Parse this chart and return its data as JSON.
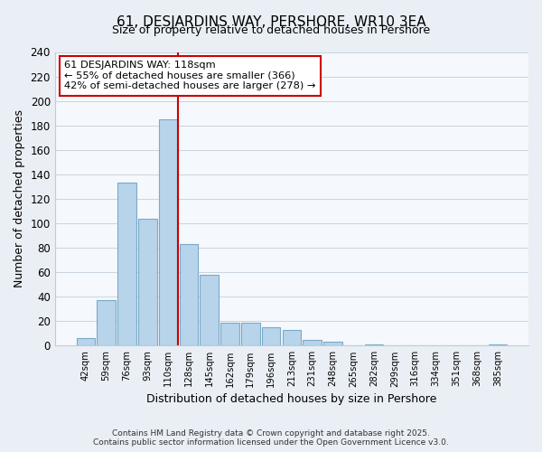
{
  "title": "61, DESJARDINS WAY, PERSHORE, WR10 3EA",
  "subtitle": "Size of property relative to detached houses in Pershore",
  "xlabel": "Distribution of detached houses by size in Pershore",
  "ylabel": "Number of detached properties",
  "bin_labels": [
    "42sqm",
    "59sqm",
    "76sqm",
    "93sqm",
    "110sqm",
    "128sqm",
    "145sqm",
    "162sqm",
    "179sqm",
    "196sqm",
    "213sqm",
    "231sqm",
    "248sqm",
    "265sqm",
    "282sqm",
    "299sqm",
    "316sqm",
    "334sqm",
    "351sqm",
    "368sqm",
    "385sqm"
  ],
  "bar_values": [
    6,
    37,
    133,
    104,
    185,
    83,
    58,
    19,
    19,
    15,
    13,
    5,
    3,
    0,
    1,
    0,
    0,
    0,
    0,
    0,
    1
  ],
  "bar_color": "#b8d4ea",
  "bar_edge_color": "#7aaac8",
  "vline_x_index": 4.5,
  "vline_color": "#cc0000",
  "annotation_line1": "61 DESJARDINS WAY: 118sqm",
  "annotation_line2": "← 55% of detached houses are smaller (366)",
  "annotation_line3": "42% of semi-detached houses are larger (278) →",
  "annotation_box_color": "#ffffff",
  "annotation_box_edge": "#cc0000",
  "ylim": [
    0,
    240
  ],
  "yticks": [
    0,
    20,
    40,
    60,
    80,
    100,
    120,
    140,
    160,
    180,
    200,
    220,
    240
  ],
  "footer_line1": "Contains HM Land Registry data © Crown copyright and database right 2025.",
  "footer_line2": "Contains public sector information licensed under the Open Government Licence v3.0.",
  "bg_color": "#eaeff5",
  "plot_bg_color": "#f5f8fc",
  "grid_color": "#c8d4e0"
}
